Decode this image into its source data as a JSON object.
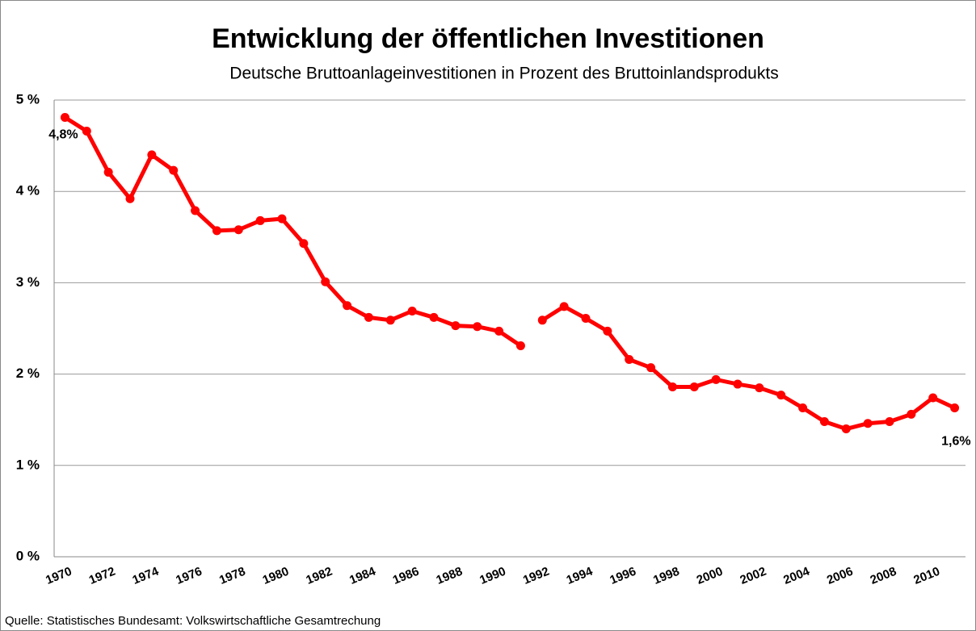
{
  "chart_data": {
    "type": "line",
    "title": "Entwicklung der öffentlichen Investitionen",
    "subtitle": "Deutsche Bruttoanlageinvestitionen in Prozent des Bruttoinlandsprodukts",
    "source": "Quelle: Statistisches Bundesamt: Volkswirtschaftliche Gesamtrechung",
    "categories": [
      "1970",
      null,
      "1972",
      null,
      "1974",
      null,
      "1976",
      null,
      "1978",
      null,
      "1980",
      null,
      "1982",
      null,
      "1984",
      null,
      "1986",
      null,
      "1988",
      null,
      "1990",
      null,
      "1992",
      null,
      "1994",
      null,
      "1996",
      null,
      "1998",
      null,
      "2000",
      null,
      "2002",
      null,
      "2004",
      null,
      "2006",
      null,
      "2008",
      null,
      "2010",
      null
    ],
    "series": [
      {
        "color": "#ff0000",
        "values": [
          4.81,
          4.66,
          4.21,
          3.92,
          4.4,
          4.23,
          3.79,
          3.57,
          3.58,
          3.68,
          3.7,
          3.43,
          3.01,
          2.75,
          2.62,
          2.59,
          2.69,
          2.62,
          2.53,
          2.52,
          2.47,
          2.31,
          null,
          null,
          null,
          null,
          null,
          null,
          null,
          null,
          null,
          null,
          null,
          null,
          null,
          null,
          null,
          null,
          null,
          null,
          null,
          null
        ],
        "value_labels": [
          "4,8%",
          null,
          null,
          null,
          null,
          null,
          null,
          null,
          null,
          null,
          null,
          null,
          null,
          null,
          null,
          null,
          null,
          null,
          null,
          null,
          null,
          null,
          null,
          null,
          null,
          null,
          null,
          null,
          null,
          null,
          null,
          null,
          null,
          null,
          null,
          null,
          null,
          null,
          null,
          null,
          null,
          null
        ]
      },
      {
        "color": "#ff0000",
        "values": [
          null,
          null,
          null,
          null,
          null,
          null,
          null,
          null,
          null,
          null,
          null,
          null,
          null,
          null,
          null,
          null,
          null,
          null,
          null,
          null,
          null,
          null,
          2.59,
          2.74,
          2.61,
          2.47,
          2.16,
          2.07,
          1.86,
          1.86,
          1.94,
          1.89,
          1.85,
          1.77,
          1.63,
          1.48,
          1.4,
          1.46,
          1.48,
          1.56,
          1.74,
          1.63
        ],
        "value_labels": [
          null,
          null,
          null,
          null,
          null,
          null,
          null,
          null,
          null,
          null,
          null,
          null,
          null,
          null,
          null,
          null,
          null,
          null,
          null,
          null,
          null,
          null,
          null,
          null,
          null,
          null,
          null,
          null,
          null,
          null,
          null,
          null,
          null,
          null,
          null,
          null,
          null,
          null,
          null,
          null,
          null,
          "1,6%"
        ]
      }
    ],
    "ylim": [
      0,
      5
    ],
    "yticks": [
      {
        "value": 0,
        "label": "0 %"
      },
      {
        "value": 1,
        "label": "1 %"
      },
      {
        "value": 2,
        "label": "2 %"
      },
      {
        "value": 3,
        "label": "3 %"
      },
      {
        "value": 4,
        "label": "4 %"
      },
      {
        "value": 5,
        "label": "5 %"
      }
    ],
    "grid": true
  }
}
